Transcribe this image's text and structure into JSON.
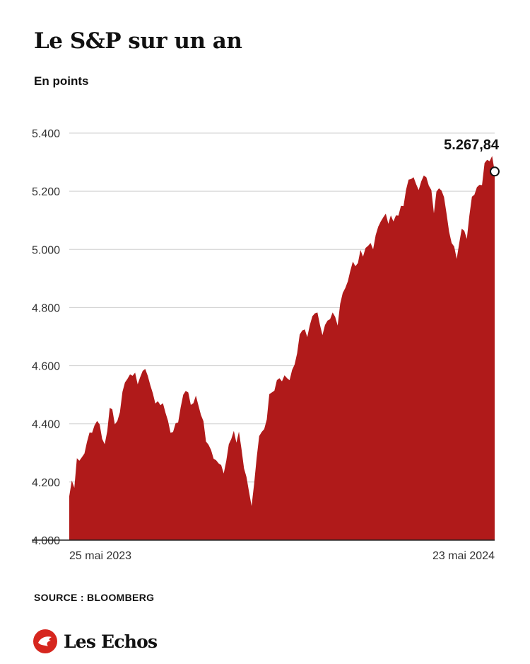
{
  "header": {
    "title": "Le S&P sur un an",
    "subtitle": "En points"
  },
  "chart_data": {
    "type": "area",
    "title": "Le S&P sur un an",
    "subtitle": "En points",
    "ylim": [
      4000,
      5400
    ],
    "yticks": [
      4000,
      4200,
      4400,
      4600,
      4800,
      5000,
      5200,
      5400
    ],
    "ytick_labels": [
      "4.000",
      "4.200",
      "4.400",
      "4.600",
      "4.800",
      "5.000",
      "5.200",
      "5.400"
    ],
    "x_start_label": "25 mai 2023",
    "x_end_label": "23 mai 2024",
    "last_value_label": "5.267,84",
    "grid": true,
    "color": "#b01a1a",
    "series": [
      {
        "values": [
          4151,
          4205,
          4180,
          4282,
          4273,
          4285,
          4298,
          4338,
          4370,
          4369,
          4395,
          4410,
          4398,
          4348,
          4330,
          4375,
          4455,
          4450,
          4398,
          4410,
          4440,
          4510,
          4542,
          4555,
          4570,
          4565,
          4576,
          4536,
          4560,
          4582,
          4589,
          4565,
          4533,
          4505,
          4470,
          4478,
          4464,
          4471,
          4438,
          4410,
          4369,
          4372,
          4402,
          4405,
          4457,
          4500,
          4513,
          4508,
          4465,
          4471,
          4497,
          4463,
          4431,
          4409,
          4339,
          4328,
          4310,
          4280,
          4275,
          4264,
          4258,
          4229,
          4273,
          4330,
          4348,
          4376,
          4335,
          4373,
          4314,
          4247,
          4217,
          4166,
          4117,
          4193,
          4283,
          4358,
          4372,
          4382,
          4415,
          4502,
          4508,
          4514,
          4550,
          4557,
          4546,
          4567,
          4557,
          4550,
          4585,
          4604,
          4643,
          4707,
          4721,
          4725,
          4698,
          4739,
          4770,
          4780,
          4783,
          4740,
          4705,
          4740,
          4755,
          4760,
          4783,
          4768,
          4738,
          4813,
          4850,
          4867,
          4890,
          4927,
          4958,
          4942,
          4953,
          4998,
          4975,
          5005,
          5012,
          5022,
          5000,
          5049,
          5078,
          5096,
          5110,
          5123,
          5088,
          5117,
          5096,
          5117,
          5116,
          5150,
          5149,
          5205,
          5240,
          5242,
          5248,
          5224,
          5204,
          5234,
          5254,
          5248,
          5219,
          5204,
          5124,
          5199,
          5210,
          5202,
          5180,
          5123,
          5061,
          5022,
          5010,
          4967,
          5021,
          5071,
          5064,
          5036,
          5116,
          5181,
          5188,
          5214,
          5222,
          5221,
          5297,
          5308,
          5303,
          5321,
          5267.84
        ]
      }
    ]
  },
  "footer": {
    "source": "SOURCE : BLOOMBERG",
    "brand": "Les Echos"
  }
}
